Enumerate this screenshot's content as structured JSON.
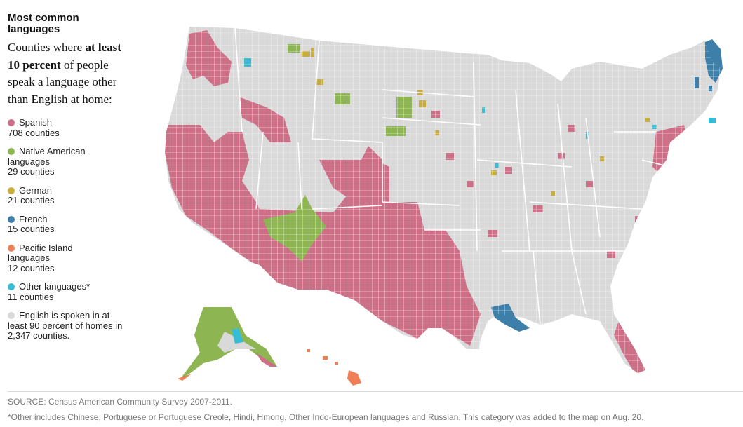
{
  "header": {
    "title": "Most common languages",
    "intro_pre": "Counties where ",
    "intro_bold": "at least 10 percent",
    "intro_post": " of people speak a language other than English at home:"
  },
  "legend": [
    {
      "label": "Spanish",
      "count": "708 counties",
      "color": "#cc6f87"
    },
    {
      "label": "Native American languages",
      "count": "29 counties",
      "color": "#8db653"
    },
    {
      "label": "German",
      "count": "21 counties",
      "color": "#c8ad3b"
    },
    {
      "label": "French",
      "count": "15 counties",
      "color": "#3e7fa9"
    },
    {
      "label": "Pacific Island languages",
      "count": "12 counties",
      "color": "#ef7f56"
    },
    {
      "label": "Other languages*",
      "count": "11 counties",
      "color": "#37bcd6"
    },
    {
      "label": "English is spoken in at least 90 percent of homes in 2,347 counties.",
      "count": "",
      "color": "#d9d9d9"
    }
  ],
  "footer": {
    "source": "SOURCE: Census American Community Survey 2007-2011.",
    "note": "*Other includes Chinese, Portuguese or Portuguese Creole, Hindi, Hmong, Other Indo-European languages and Russian. This category was added to the map on Aug. 20."
  }
}
